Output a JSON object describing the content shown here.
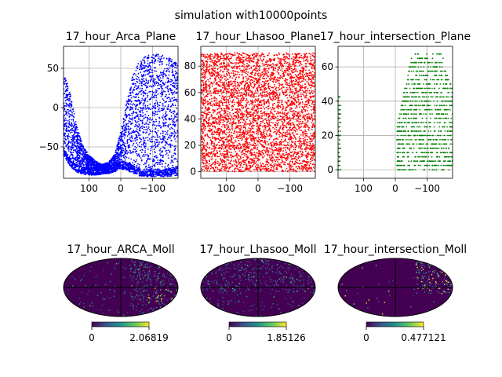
{
  "figure": {
    "suptitle": "simulation with10000points"
  },
  "colors": {
    "arca": "#0000ff",
    "lhasoo": "#ff0000",
    "intersection": "#008000",
    "grid": "#b0b0b0",
    "colormap": "viridis"
  },
  "chart_data": [
    {
      "type": "scatter",
      "title": "17_hour_Arca_Plane",
      "series_color": "blue",
      "xlim": [
        180,
        -180
      ],
      "ylim": [
        -90,
        78
      ],
      "xticks": [
        "100",
        "0",
        "−100"
      ],
      "xtick_values": [
        100,
        0,
        -100
      ],
      "yticks": [
        "−50",
        "0",
        "50"
      ],
      "ytick_values": [
        -50,
        0,
        50
      ],
      "grid": true,
      "points": 10000,
      "envelope": {
        "x": [
          180,
          160,
          140,
          120,
          100,
          80,
          60,
          40,
          20,
          0,
          -20,
          -40,
          -60,
          -80,
          -100,
          -120,
          -140,
          -160,
          -180
        ],
        "upper": [
          48,
          20,
          -20,
          -48,
          -60,
          -68,
          -72,
          -70,
          -60,
          -30,
          10,
          45,
          60,
          66,
          68,
          68,
          66,
          62,
          58
        ],
        "lower": [
          -60,
          -75,
          -82,
          -85,
          -86,
          -86,
          -85,
          -84,
          -82,
          -78,
          -80,
          -84,
          -87,
          -88,
          -88,
          -88,
          -88,
          -87,
          -86
        ]
      }
    },
    {
      "type": "scatter",
      "title": "17_hour_Lhasoo_Plane",
      "series_color": "red",
      "xlim": [
        180,
        -180
      ],
      "ylim": [
        -5,
        95
      ],
      "xticks": [
        "100",
        "0",
        "−100"
      ],
      "xtick_values": [
        100,
        0,
        -100
      ],
      "yticks": [
        "0",
        "20",
        "40",
        "60",
        "80"
      ],
      "ytick_values": [
        0,
        20,
        40,
        60,
        80
      ],
      "grid": true,
      "points": 10000,
      "y_range": [
        0,
        90
      ]
    },
    {
      "type": "scatter",
      "title": "17_hour_intersection_Plane",
      "series_color": "green",
      "xlim": [
        180,
        -180
      ],
      "ylim": [
        -5,
        72
      ],
      "xticks": [
        "100",
        "0",
        "−100"
      ],
      "xtick_values": [
        100,
        0,
        -100
      ],
      "yticks": [
        "0",
        "20",
        "40",
        "60"
      ],
      "ytick_values": [
        0,
        20,
        40,
        60
      ],
      "grid": true,
      "clusters": [
        {
          "x_range": [
            180,
            172
          ],
          "y_range": [
            0,
            45
          ]
        },
        {
          "x_range": [
            -5,
            -180
          ],
          "y_range": [
            0,
            68
          ]
        }
      ]
    },
    {
      "type": "heatmap",
      "projection": "mollweide",
      "title": "17_hour_ARCA_Moll",
      "colorbar": {
        "min": "0",
        "max": "2.06819"
      },
      "hot_region": "right"
    },
    {
      "type": "heatmap",
      "projection": "mollweide",
      "title": "17_hour_Lhasoo_Moll",
      "colorbar": {
        "min": "0",
        "max": "1.85126"
      },
      "hot_region": "top"
    },
    {
      "type": "heatmap",
      "projection": "mollweide",
      "title": "17_hour_intersection_Moll",
      "colorbar": {
        "min": "0",
        "max": "0.477121"
      },
      "hot_region": "top-right"
    }
  ]
}
